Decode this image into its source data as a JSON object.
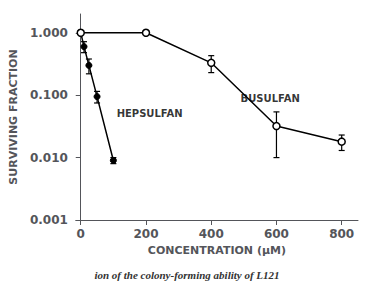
{
  "chart_data": {
    "type": "line",
    "x_label": "CONCENTRATION (μM)",
    "y_label": "SURVIVING FRACTION",
    "caption": "ion of the colony-forming ability of L121",
    "log": "y",
    "grid": false,
    "xlim": [
      -15,
      850
    ],
    "xticks": [
      0,
      200,
      400,
      600,
      800
    ],
    "ylim": [
      0.001,
      2.0
    ],
    "yticks": [
      {
        "value": 0.001,
        "label": "0.001"
      },
      {
        "value": 0.01,
        "label": "0.010"
      },
      {
        "value": 0.1,
        "label": "0.100"
      },
      {
        "value": 1.0,
        "label": "1.000"
      }
    ],
    "series": [
      {
        "color": "#000000",
        "marker": "filled_circle",
        "x": [
          0,
          10,
          25,
          50,
          100
        ],
        "values": [
          1.0,
          0.6,
          0.3,
          0.095,
          0.009
        ],
        "yerr_low": [
          0.0,
          0.12,
          0.08,
          0.02,
          0.001
        ],
        "yerr_high": [
          0.0,
          0.12,
          0.08,
          0.02,
          0.001
        ]
      },
      {
        "color": "#000000",
        "marker": "open_circle",
        "x": [
          0,
          200,
          400,
          600,
          800
        ],
        "values": [
          1.0,
          1.0,
          0.33,
          0.032,
          0.018
        ],
        "yerr_low": [
          0.0,
          0.0,
          0.1,
          0.022,
          0.005
        ],
        "yerr_high": [
          0.0,
          0.0,
          0.1,
          0.022,
          0.005
        ]
      }
    ],
    "annotations": [
      {
        "text": "HEPSULFAN",
        "x": 110,
        "y": 0.05,
        "color": "#000000"
      },
      {
        "text": "BUSULFAN",
        "x": 490,
        "y": 0.09,
        "color": "#000000"
      }
    ]
  }
}
